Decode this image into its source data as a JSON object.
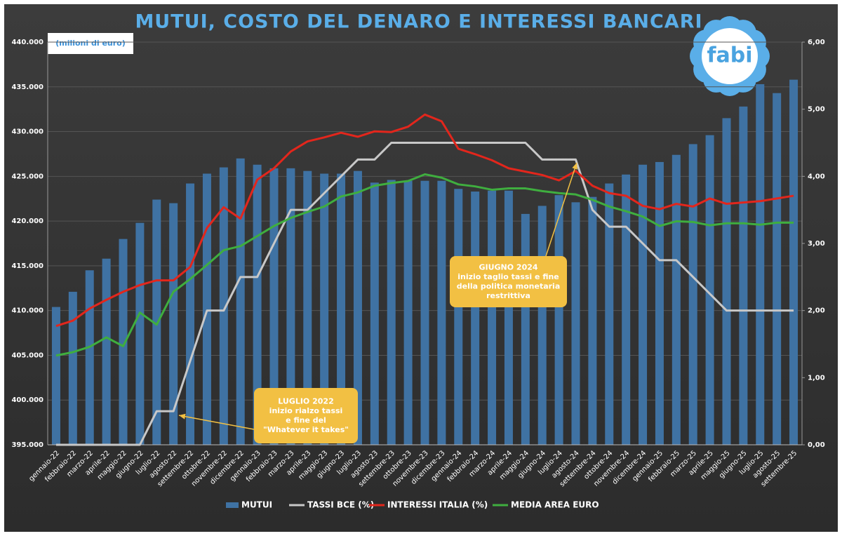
{
  "chart_data": {
    "type": "bar",
    "title": "MUTUI, COSTO DEL DENARO E INTERESSI BANCARI",
    "unit_label": "(milioni di euro)",
    "logo": "fabi",
    "categories": [
      "gennaio-22",
      "febbraio-22",
      "marzo-22",
      "aprile-22",
      "maggio-22",
      "giugno-22",
      "luglio-22",
      "agosto-22",
      "settembre-22",
      "ottobre-22",
      "novembre-22",
      "dicembre-22",
      "gennaio-23",
      "febbraio-23",
      "marzo-23",
      "aprile-23",
      "maggio-23",
      "giugno-23",
      "luglio-23",
      "agosto-23",
      "settembre-23",
      "ottobre-23",
      "novembre-23",
      "dicembre-23",
      "gennaio-24",
      "febbraio-24",
      "marzo-24",
      "aprile-24",
      "maggio-24",
      "giugno-24",
      "luglio-24",
      "agosto-24",
      "settembre-24",
      "ottobre-24",
      "novembre-24",
      "dicembre-24",
      "gennaio-25",
      "febbraio-25",
      "marzo-25",
      "aprile-25",
      "maggio-25",
      "giugno-25",
      "luglio-25",
      "agosto-25",
      "settembre-25"
    ],
    "series": [
      {
        "name": "MUTUI",
        "type": "bar",
        "color": "#3f72a3",
        "values": [
          410400,
          412100,
          414500,
          415800,
          418000,
          419800,
          422400,
          422000,
          424200,
          425300,
          426000,
          427000,
          426300,
          425900,
          425900,
          425600,
          425300,
          425300,
          425600,
          424300,
          424600,
          424500,
          424500,
          424500,
          423600,
          423300,
          423400,
          423400,
          420800,
          421700,
          422900,
          422100,
          422700,
          424200,
          425200,
          426300,
          426600,
          427400,
          428600,
          429600,
          431500,
          432800,
          435300,
          434300,
          435800
        ]
      },
      {
        "name": "TASSI BCE (%)",
        "type": "line",
        "axis": "y2",
        "color": "#c8c8c8",
        "values": [
          0,
          0,
          0,
          0,
          0,
          0,
          0.5,
          0.5,
          1.25,
          2,
          2,
          2.5,
          2.5,
          3,
          3.5,
          3.5,
          3.75,
          4,
          4.25,
          4.25,
          4.5,
          4.5,
          4.5,
          4.5,
          4.5,
          4.5,
          4.5,
          4.5,
          4.5,
          4.25,
          4.25,
          4.25,
          3.5,
          3.25,
          3.25,
          3,
          2.75,
          2.75,
          2.5,
          2.25,
          2,
          2,
          2,
          2,
          2
        ]
      },
      {
        "name": "INTERESSI  ITALIA (%)",
        "type": "line",
        "axis": "y2",
        "color": "#e3261c",
        "values": [
          1.77,
          1.85,
          2.03,
          2.16,
          2.28,
          2.38,
          2.45,
          2.45,
          2.65,
          3.23,
          3.54,
          3.37,
          3.95,
          4.12,
          4.37,
          4.52,
          4.58,
          4.65,
          4.59,
          4.67,
          4.66,
          4.74,
          4.92,
          4.82,
          4.41,
          4.33,
          4.24,
          4.12,
          4.07,
          4.02,
          3.94,
          4.08,
          3.86,
          3.75,
          3.71,
          3.56,
          3.51,
          3.59,
          3.55,
          3.67,
          3.59,
          3.61,
          3.63,
          3.67,
          3.71
        ]
      },
      {
        "name": "MEDIA AREA EURO",
        "type": "line",
        "axis": "y2",
        "color": "#3fae3f",
        "values": [
          1.33,
          1.38,
          1.46,
          1.6,
          1.47,
          1.97,
          1.79,
          2.28,
          2.47,
          2.68,
          2.9,
          2.96,
          3.11,
          3.26,
          3.38,
          3.47,
          3.55,
          3.7,
          3.76,
          3.86,
          3.9,
          3.93,
          4.03,
          3.98,
          3.88,
          3.85,
          3.8,
          3.82,
          3.82,
          3.78,
          3.75,
          3.73,
          3.65,
          3.55,
          3.48,
          3.4,
          3.26,
          3.33,
          3.32,
          3.27,
          3.3,
          3.3,
          3.28,
          3.31,
          3.31
        ]
      }
    ],
    "ylim": [
      395000,
      440000
    ],
    "yticks": [
      {
        "value": 395000,
        "label": "395.000"
      },
      {
        "value": 400000,
        "label": "400.000"
      },
      {
        "value": 405000,
        "label": "405.000"
      },
      {
        "value": 410000,
        "label": "410.000"
      },
      {
        "value": 415000,
        "label": "415.000"
      },
      {
        "value": 420000,
        "label": "420.000"
      },
      {
        "value": 425000,
        "label": "425.000"
      },
      {
        "value": 430000,
        "label": "430.000"
      },
      {
        "value": 435000,
        "label": "435.000"
      },
      {
        "value": 440000,
        "label": "440.000"
      }
    ],
    "y2lim": [
      0,
      6
    ],
    "y2ticks": [
      {
        "value": 0,
        "label": "0,00"
      },
      {
        "value": 1,
        "label": "1,00"
      },
      {
        "value": 2,
        "label": "2,00"
      },
      {
        "value": 3,
        "label": "3,00"
      },
      {
        "value": 4,
        "label": "4,00"
      },
      {
        "value": 5,
        "label": "5,00"
      },
      {
        "value": 6,
        "label": "6,00"
      }
    ],
    "grid": true,
    "legend": "bottom",
    "annotations": [
      {
        "lines": [
          "LUGLIO 2022",
          "inizio rialzo tassi",
          "e fine del",
          "\"Whatever it takes\""
        ]
      },
      {
        "lines": [
          "GIUGNO 2024",
          "inizio taglio tassi e fine",
          "della politica monetaria",
          "restrittiva"
        ]
      }
    ]
  }
}
